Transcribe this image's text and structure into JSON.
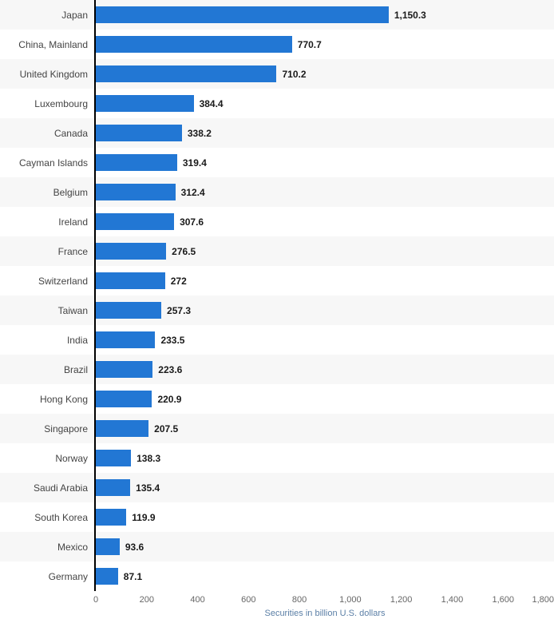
{
  "chart_data": {
    "type": "bar",
    "orientation": "horizontal",
    "title": "",
    "categories": [
      "Japan",
      "China, Mainland",
      "United Kingdom",
      "Luxembourg",
      "Canada",
      "Cayman Islands",
      "Belgium",
      "Ireland",
      "France",
      "Switzerland",
      "Taiwan",
      "India",
      "Brazil",
      "Hong Kong",
      "Singapore",
      "Norway",
      "Saudi Arabia",
      "South Korea",
      "Mexico",
      "Germany"
    ],
    "values": [
      1150.3,
      770.7,
      710.2,
      384.4,
      338.2,
      319.4,
      312.4,
      307.6,
      276.5,
      272,
      257.3,
      233.5,
      223.6,
      220.9,
      207.5,
      138.3,
      135.4,
      119.9,
      93.6,
      87.1
    ],
    "value_labels": [
      "1,150.3",
      "770.7",
      "710.2",
      "384.4",
      "338.2",
      "319.4",
      "312.4",
      "307.6",
      "276.5",
      "272",
      "257.3",
      "233.5",
      "223.6",
      "220.9",
      "207.5",
      "138.3",
      "135.4",
      "119.9",
      "93.6",
      "87.1"
    ],
    "xlabel": "Securities in billion U.S. dollars",
    "ylabel": "",
    "xlim": [
      0,
      1800
    ],
    "x_ticks": [
      "0",
      "200",
      "400",
      "600",
      "800",
      "1,000",
      "1,200",
      "1,400",
      "1,600",
      "1,800"
    ],
    "grid": false,
    "legend": false,
    "row_striping": "alternating starting gray",
    "colors": {
      "bar": "#2277d4",
      "band": "#f7f7f7",
      "axis_line": "#000000",
      "value_label": "#1a1a1a",
      "category_label": "#444444",
      "tick_label": "#666666",
      "xlabel_color": "#5b7fa6"
    }
  }
}
